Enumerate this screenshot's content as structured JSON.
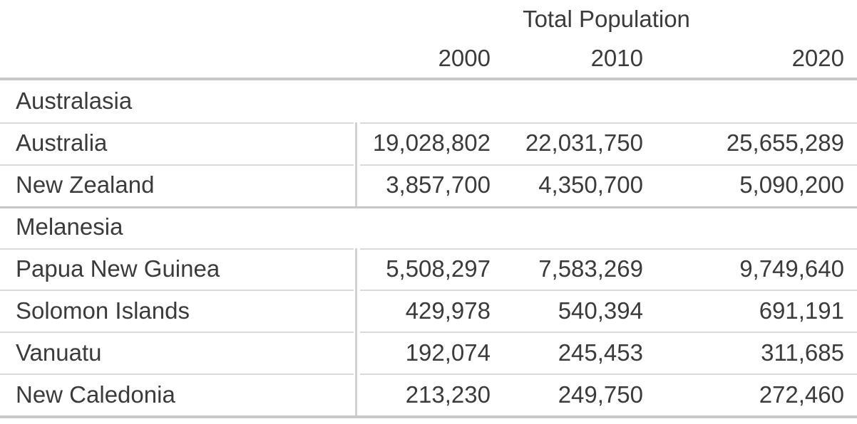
{
  "header": {
    "title": "Total Population",
    "years": [
      "2000",
      "2010",
      "2020"
    ]
  },
  "groups": [
    {
      "name": "Australasia",
      "rows": [
        {
          "label": "Australia",
          "values": [
            "19,028,802",
            "22,031,750",
            "25,655,289"
          ]
        },
        {
          "label": "New Zealand",
          "values": [
            "3,857,700",
            "4,350,700",
            "5,090,200"
          ]
        }
      ]
    },
    {
      "name": "Melanesia",
      "rows": [
        {
          "label": "Papua New Guinea",
          "values": [
            "5,508,297",
            "7,583,269",
            "9,749,640"
          ]
        },
        {
          "label": "Solomon Islands",
          "values": [
            "429,978",
            "540,394",
            "691,191"
          ]
        },
        {
          "label": "Vanuatu",
          "values": [
            "192,074",
            "245,453",
            "311,685"
          ]
        },
        {
          "label": "New Caledonia",
          "values": [
            "213,230",
            "249,750",
            "272,460"
          ]
        }
      ]
    }
  ],
  "colors": {
    "text": "#3b3b3b",
    "strong_line": "#c8c8c8",
    "light_line": "#dadada",
    "column_divider": "#d2d2d2",
    "background": "#ffffff"
  },
  "chart_data": {
    "type": "table",
    "title": "Total Population",
    "categories": [
      "2000",
      "2010",
      "2020"
    ],
    "group_labels": [
      "Australasia",
      "Melanesia"
    ],
    "series": [
      {
        "name": "Australia",
        "group": "Australasia",
        "values": [
          19028802,
          22031750,
          25655289
        ]
      },
      {
        "name": "New Zealand",
        "group": "Australasia",
        "values": [
          3857700,
          4350700,
          5090200
        ]
      },
      {
        "name": "Papua New Guinea",
        "group": "Melanesia",
        "values": [
          5508297,
          7583269,
          9749640
        ]
      },
      {
        "name": "Solomon Islands",
        "group": "Melanesia",
        "values": [
          429978,
          540394,
          691191
        ]
      },
      {
        "name": "Vanuatu",
        "group": "Melanesia",
        "values": [
          192074,
          245453,
          311685
        ]
      },
      {
        "name": "New Caledonia",
        "group": "Melanesia",
        "values": [
          213230,
          249750,
          272460
        ]
      }
    ],
    "layout_hints": {
      "value_alignment": "right",
      "grouped_rows": true,
      "grid": "horizontal-separators"
    }
  }
}
